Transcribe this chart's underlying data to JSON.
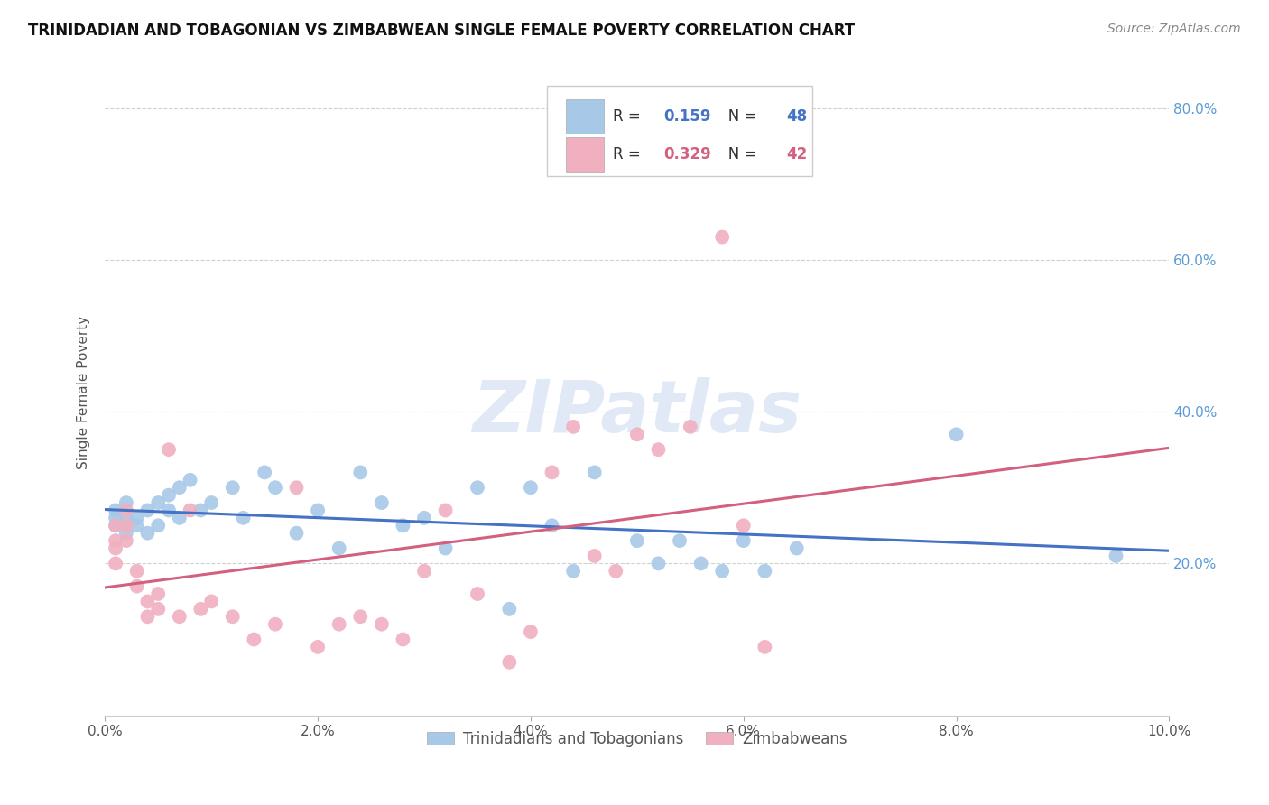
{
  "title": "TRINIDADIAN AND TOBAGONIAN VS ZIMBABWEAN SINGLE FEMALE POVERTY CORRELATION CHART",
  "source": "Source: ZipAtlas.com",
  "ylabel": "Single Female Poverty",
  "xlim": [
    0.0,
    0.1
  ],
  "ylim": [
    0.0,
    0.85
  ],
  "xtick_labels": [
    "0.0%",
    "2.0%",
    "4.0%",
    "6.0%",
    "8.0%",
    "10.0%"
  ],
  "xtick_vals": [
    0.0,
    0.02,
    0.04,
    0.06,
    0.08,
    0.1
  ],
  "ytick_labels": [
    "20.0%",
    "40.0%",
    "60.0%",
    "80.0%"
  ],
  "ytick_vals": [
    0.2,
    0.4,
    0.6,
    0.8
  ],
  "background_color": "#ffffff",
  "grid_color": "#d0d0d0",
  "blue_color": "#a8c8e8",
  "pink_color": "#f0b0c0",
  "blue_line_color": "#4472c4",
  "pink_line_color": "#d46080",
  "legend_R_blue": "0.159",
  "legend_N_blue": "48",
  "legend_R_pink": "0.329",
  "legend_N_pink": "42",
  "legend_label_blue": "Trinidadians and Tobagonians",
  "legend_label_pink": "Zimbabweans",
  "blue_x": [
    0.001,
    0.001,
    0.001,
    0.002,
    0.002,
    0.002,
    0.002,
    0.003,
    0.003,
    0.004,
    0.004,
    0.005,
    0.005,
    0.006,
    0.006,
    0.007,
    0.007,
    0.008,
    0.009,
    0.01,
    0.012,
    0.013,
    0.015,
    0.016,
    0.018,
    0.02,
    0.022,
    0.024,
    0.026,
    0.028,
    0.03,
    0.032,
    0.035,
    0.038,
    0.04,
    0.042,
    0.044,
    0.046,
    0.05,
    0.052,
    0.054,
    0.056,
    0.058,
    0.06,
    0.062,
    0.065,
    0.08,
    0.095
  ],
  "blue_y": [
    0.26,
    0.27,
    0.25,
    0.26,
    0.28,
    0.24,
    0.25,
    0.25,
    0.26,
    0.27,
    0.24,
    0.28,
    0.25,
    0.29,
    0.27,
    0.3,
    0.26,
    0.31,
    0.27,
    0.28,
    0.3,
    0.26,
    0.32,
    0.3,
    0.24,
    0.27,
    0.22,
    0.32,
    0.28,
    0.25,
    0.26,
    0.22,
    0.3,
    0.14,
    0.3,
    0.25,
    0.19,
    0.32,
    0.23,
    0.2,
    0.23,
    0.2,
    0.19,
    0.23,
    0.19,
    0.22,
    0.37,
    0.21
  ],
  "pink_x": [
    0.001,
    0.001,
    0.001,
    0.001,
    0.002,
    0.002,
    0.002,
    0.003,
    0.003,
    0.004,
    0.004,
    0.005,
    0.005,
    0.006,
    0.007,
    0.008,
    0.009,
    0.01,
    0.012,
    0.014,
    0.016,
    0.018,
    0.02,
    0.022,
    0.024,
    0.026,
    0.028,
    0.03,
    0.032,
    0.035,
    0.038,
    0.04,
    0.042,
    0.044,
    0.046,
    0.048,
    0.05,
    0.052,
    0.055,
    0.058,
    0.06,
    0.062
  ],
  "pink_y": [
    0.25,
    0.23,
    0.22,
    0.2,
    0.27,
    0.25,
    0.23,
    0.19,
    0.17,
    0.15,
    0.13,
    0.16,
    0.14,
    0.35,
    0.13,
    0.27,
    0.14,
    0.15,
    0.13,
    0.1,
    0.12,
    0.3,
    0.09,
    0.12,
    0.13,
    0.12,
    0.1,
    0.19,
    0.27,
    0.16,
    0.07,
    0.11,
    0.32,
    0.38,
    0.21,
    0.19,
    0.37,
    0.35,
    0.38,
    0.63,
    0.25,
    0.09
  ]
}
